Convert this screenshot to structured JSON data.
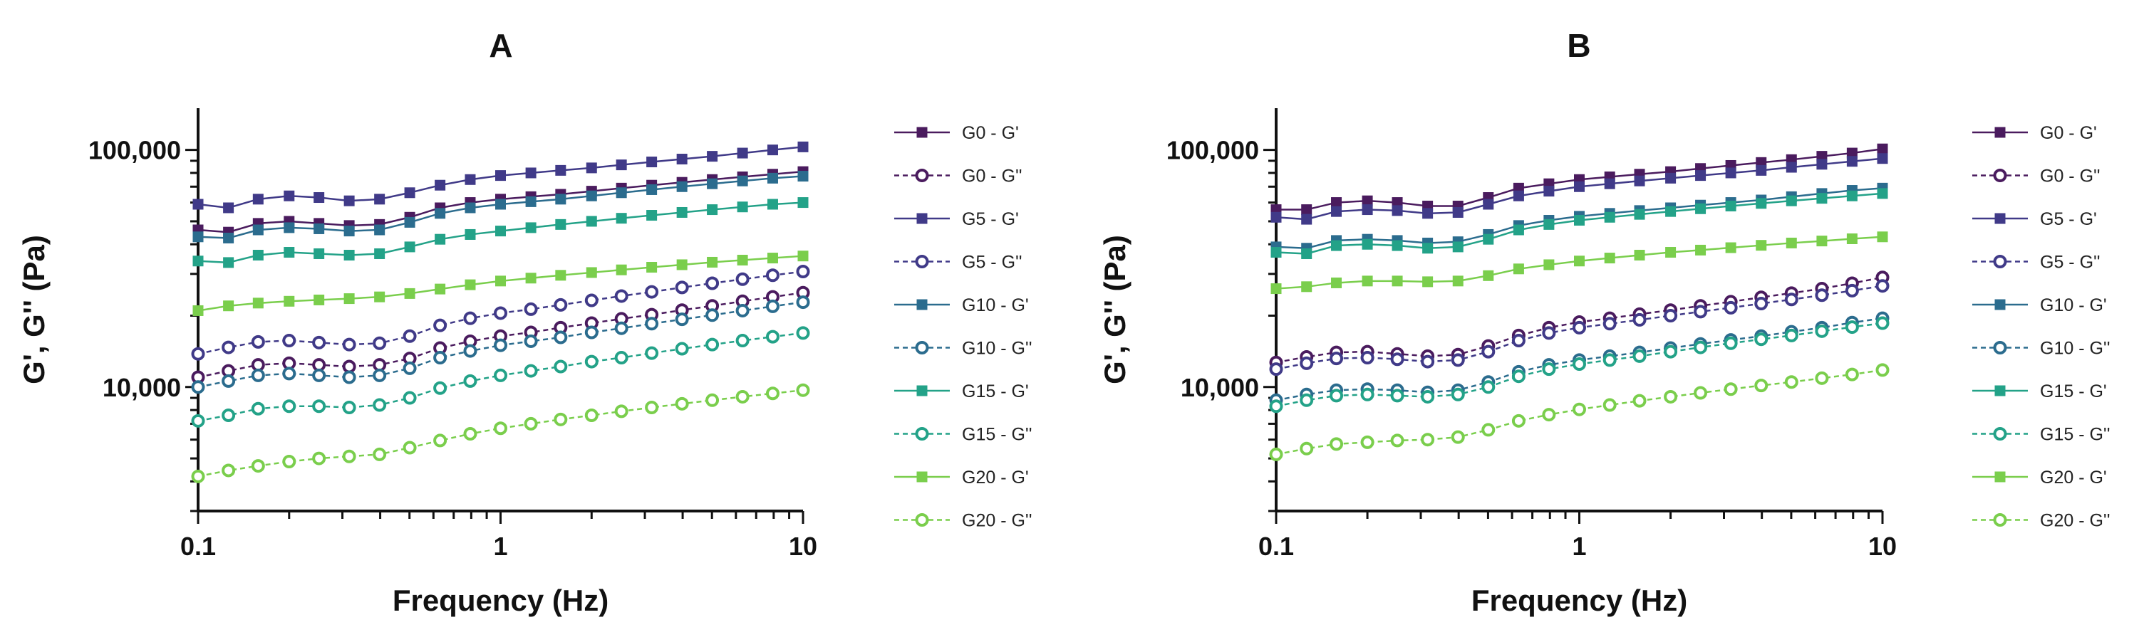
{
  "chart_data": [
    {
      "type": "line",
      "title": "A",
      "xlabel": "Frequency (Hz)",
      "ylabel": "G', G'' (Pa)",
      "x_scale": "log",
      "y_scale": "log",
      "xlim": [
        0.1,
        10
      ],
      "ylim": [
        3000,
        150000
      ],
      "x_ticks": [
        0.1,
        1,
        10
      ],
      "x_tick_labels": [
        "0.1",
        "1",
        "10"
      ],
      "y_ticks": [
        10000,
        100000
      ],
      "y_tick_labels": [
        "10,000",
        "100,000"
      ],
      "grid": false,
      "legend_position": "right",
      "x": [
        0.1,
        0.126,
        0.158,
        0.2,
        0.251,
        0.316,
        0.398,
        0.501,
        0.631,
        0.794,
        1,
        1.26,
        1.58,
        2,
        2.51,
        3.16,
        3.98,
        5.01,
        6.31,
        7.94,
        10
      ],
      "series": [
        {
          "name": "G0 - G'",
          "marker": "square",
          "color": "#4a1b5e",
          "values": [
            46000,
            45000,
            49000,
            50000,
            49000,
            48000,
            48500,
            52000,
            57000,
            60000,
            62000,
            63500,
            65000,
            67000,
            69000,
            71000,
            73000,
            75000,
            77000,
            79000,
            81000
          ]
        },
        {
          "name": "G0 - G''",
          "marker": "circle",
          "color": "#4a1b5e",
          "values": [
            11000,
            11700,
            12400,
            12600,
            12400,
            12200,
            12400,
            13200,
            14600,
            15600,
            16400,
            17000,
            17800,
            18600,
            19400,
            20200,
            21100,
            22000,
            23000,
            24000,
            25000
          ]
        },
        {
          "name": "G5 - G'",
          "marker": "square",
          "color": "#403a88",
          "values": [
            59000,
            57000,
            62000,
            64000,
            63000,
            61000,
            62000,
            66000,
            71000,
            75000,
            78000,
            80000,
            82000,
            84000,
            86500,
            89000,
            91500,
            94000,
            97000,
            100000,
            103000
          ]
        },
        {
          "name": "G5 - G''",
          "marker": "circle",
          "color": "#403a88",
          "values": [
            13800,
            14700,
            15500,
            15700,
            15400,
            15100,
            15300,
            16400,
            18200,
            19500,
            20500,
            21300,
            22200,
            23200,
            24200,
            25200,
            26300,
            27400,
            28500,
            29600,
            30700
          ]
        },
        {
          "name": "G10 - G'",
          "marker": "square",
          "color": "#2b6c8e",
          "values": [
            43000,
            42500,
            46000,
            47000,
            46500,
            45500,
            46000,
            49500,
            54000,
            57000,
            59000,
            60500,
            62000,
            64000,
            66000,
            68000,
            70000,
            72000,
            74000,
            76000,
            77500
          ]
        },
        {
          "name": "G10 - G''",
          "marker": "circle",
          "color": "#2b6c8e",
          "values": [
            10000,
            10600,
            11200,
            11400,
            11200,
            11000,
            11200,
            12000,
            13300,
            14200,
            15000,
            15600,
            16200,
            17000,
            17700,
            18500,
            19300,
            20100,
            21000,
            21900,
            22800
          ]
        },
        {
          "name": "G15 - G'",
          "marker": "square",
          "color": "#23a288",
          "values": [
            34000,
            33500,
            36000,
            37000,
            36500,
            36000,
            36500,
            39000,
            42000,
            44000,
            45500,
            47000,
            48500,
            50000,
            51500,
            53000,
            54500,
            56000,
            57500,
            59000,
            60000
          ]
        },
        {
          "name": "G15 - G''",
          "marker": "circle",
          "color": "#23a288",
          "values": [
            7200,
            7600,
            8100,
            8300,
            8300,
            8200,
            8400,
            9000,
            9900,
            10600,
            11200,
            11700,
            12200,
            12800,
            13300,
            13900,
            14500,
            15100,
            15700,
            16300,
            16900
          ]
        },
        {
          "name": "G20 - G'",
          "marker": "square",
          "color": "#7ace4c",
          "values": [
            21000,
            22000,
            22600,
            23000,
            23300,
            23600,
            24000,
            24800,
            25900,
            27000,
            28000,
            28800,
            29600,
            30400,
            31200,
            32000,
            32800,
            33600,
            34300,
            35000,
            35700
          ]
        },
        {
          "name": "G20 - G''",
          "marker": "circle",
          "color": "#7ace4c",
          "values": [
            4200,
            4450,
            4650,
            4850,
            5000,
            5100,
            5200,
            5550,
            5950,
            6350,
            6700,
            7000,
            7300,
            7600,
            7900,
            8200,
            8500,
            8800,
            9100,
            9400,
            9700
          ]
        }
      ]
    },
    {
      "type": "line",
      "title": "B",
      "xlabel": "Frequency (Hz)",
      "ylabel": "G', G'' (Pa)",
      "x_scale": "log",
      "y_scale": "log",
      "xlim": [
        0.1,
        10
      ],
      "ylim": [
        3000,
        150000
      ],
      "x_ticks": [
        0.1,
        1,
        10
      ],
      "x_tick_labels": [
        "0.1",
        "1",
        "10"
      ],
      "y_ticks": [
        10000,
        100000
      ],
      "y_tick_labels": [
        "10,000",
        "100,000"
      ],
      "grid": false,
      "legend_position": "right",
      "x": [
        0.1,
        0.126,
        0.158,
        0.2,
        0.251,
        0.316,
        0.398,
        0.501,
        0.631,
        0.794,
        1,
        1.26,
        1.58,
        2,
        2.51,
        3.16,
        3.98,
        5.01,
        6.31,
        7.94,
        10
      ],
      "series": [
        {
          "name": "G0 - G'",
          "marker": "square",
          "color": "#4a1b5e",
          "values": [
            56000,
            56000,
            60000,
            61000,
            60000,
            58000,
            58000,
            63000,
            69000,
            72000,
            75000,
            77000,
            79000,
            81000,
            83500,
            86000,
            88500,
            91000,
            94000,
            97000,
            101000
          ]
        },
        {
          "name": "G0 - G''",
          "marker": "circle",
          "color": "#4a1b5e",
          "values": [
            12700,
            13400,
            14000,
            14100,
            13800,
            13500,
            13700,
            14900,
            16500,
            17800,
            18800,
            19500,
            20300,
            21100,
            22000,
            22900,
            23900,
            24900,
            26000,
            27400,
            29000
          ]
        },
        {
          "name": "G5 - G'",
          "marker": "square",
          "color": "#403a88",
          "values": [
            52000,
            51000,
            55000,
            56000,
            55500,
            54000,
            54500,
            59000,
            64000,
            67000,
            70000,
            72000,
            74000,
            76000,
            78000,
            80000,
            82000,
            84500,
            87000,
            89500,
            92000
          ]
        },
        {
          "name": "G5 - G''",
          "marker": "circle",
          "color": "#403a88",
          "values": [
            11900,
            12600,
            13200,
            13300,
            13100,
            12800,
            13000,
            14100,
            15700,
            16900,
            17800,
            18500,
            19200,
            20000,
            20800,
            21600,
            22500,
            23400,
            24400,
            25500,
            26700
          ]
        },
        {
          "name": "G10 - G'",
          "marker": "square",
          "color": "#2b6c8e",
          "values": [
            39000,
            38500,
            41500,
            42000,
            41500,
            40500,
            41000,
            44000,
            48000,
            50500,
            52500,
            54000,
            55500,
            57000,
            58500,
            60000,
            61500,
            63500,
            65500,
            67500,
            69000
          ]
        },
        {
          "name": "G10 - G''",
          "marker": "circle",
          "color": "#2b6c8e",
          "values": [
            8800,
            9300,
            9700,
            9800,
            9700,
            9500,
            9700,
            10500,
            11600,
            12400,
            13000,
            13500,
            14000,
            14600,
            15200,
            15800,
            16400,
            17100,
            17800,
            18700,
            19500
          ]
        },
        {
          "name": "G15 - G'",
          "marker": "square",
          "color": "#23a288",
          "values": [
            37000,
            36500,
            39500,
            40000,
            39500,
            38500,
            39000,
            42000,
            46000,
            48500,
            50500,
            52000,
            53500,
            55000,
            56500,
            58000,
            59500,
            61000,
            62500,
            64000,
            65500
          ]
        },
        {
          "name": "G15 - G''",
          "marker": "circle",
          "color": "#23a288",
          "values": [
            8300,
            8800,
            9200,
            9300,
            9200,
            9100,
            9300,
            10000,
            11100,
            11900,
            12500,
            13000,
            13500,
            14100,
            14700,
            15300,
            15900,
            16500,
            17200,
            17900,
            18600
          ]
        },
        {
          "name": "G20 - G'",
          "marker": "square",
          "color": "#7ace4c",
          "values": [
            26000,
            26500,
            27500,
            28000,
            28000,
            27800,
            28000,
            29500,
            31500,
            32800,
            34000,
            35000,
            36000,
            37000,
            37800,
            38700,
            39600,
            40500,
            41300,
            42200,
            43000
          ]
        },
        {
          "name": "G20 - G''",
          "marker": "circle",
          "color": "#7ace4c",
          "values": [
            5200,
            5500,
            5750,
            5850,
            5950,
            6000,
            6150,
            6600,
            7200,
            7650,
            8050,
            8400,
            8750,
            9100,
            9450,
            9800,
            10150,
            10500,
            10900,
            11300,
            11800
          ]
        }
      ]
    }
  ]
}
